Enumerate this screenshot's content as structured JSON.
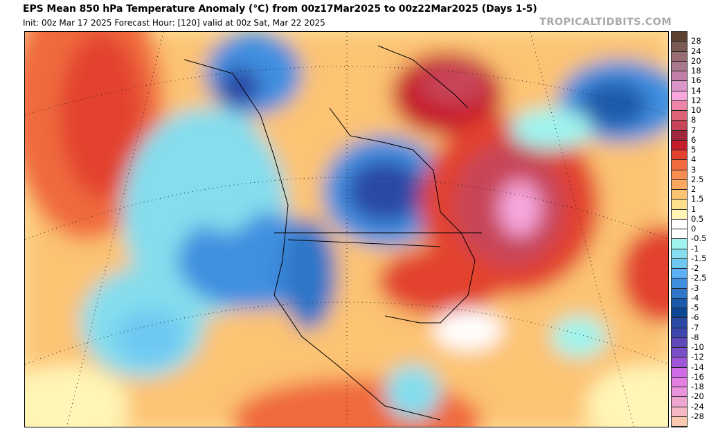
{
  "header": {
    "title": "EPS Mean 850 hPa Temperature Anomaly (°C) from 00z17Mar2025 to 00z22Mar2025 (Days 1-5)",
    "subtitle": "Init: 00z Mar 17 2025   Forecast Hour: [120]   valid at 00z Sat, Mar 22 2025",
    "brand": "TROPICALTIDBITS.COM"
  },
  "colorbar": {
    "labels": [
      "28",
      "24",
      "20",
      "18",
      "16",
      "14",
      "12",
      "10",
      "8",
      "7",
      "6",
      "5",
      "4",
      "3",
      "2.5",
      "2",
      "1.5",
      "1",
      "0.5",
      "0",
      "-0.5",
      "-1",
      "-1.5",
      "-2",
      "-2.5",
      "-3",
      "-4",
      "-5",
      "-6",
      "-7",
      "-8",
      "-10",
      "-12",
      "-14",
      "-16",
      "-18",
      "-20",
      "-24",
      "-28"
    ],
    "colors": [
      "#5c4233",
      "#7b5a54",
      "#9a6c73",
      "#a9788a",
      "#c280a8",
      "#d996c6",
      "#f8a7de",
      "#ee85a8",
      "#dc6277",
      "#c74559",
      "#a0263c",
      "#c61d2c",
      "#e2432f",
      "#f06a3e",
      "#f98c50",
      "#fba75f",
      "#fcc373",
      "#fde08e",
      "#fff5b6",
      "#ffffff",
      "#ffffff",
      "#9ff4ee",
      "#85dded",
      "#6ec8f2",
      "#5cb0f4",
      "#3f8fe0",
      "#2f76c8",
      "#1b5aaa",
      "#0e4696",
      "#2a4aa6",
      "#3f48ae",
      "#6048b8",
      "#7a4ec6",
      "#9e55d8",
      "#d06ae6",
      "#e37fe0",
      "#ea93dc",
      "#eea6d0",
      "#f5b8c2",
      "#fbcab0"
    ]
  }
}
